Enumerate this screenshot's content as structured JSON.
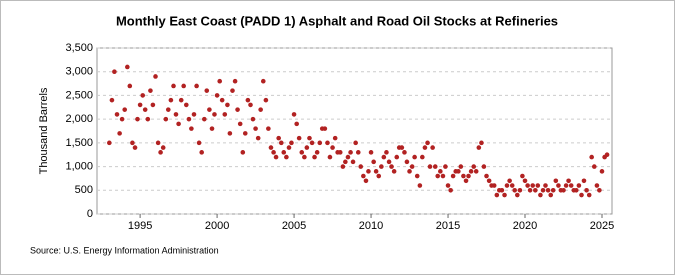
{
  "chart_data": {
    "type": "scatter",
    "title": "Monthly East Coast (PADD 1) Asphalt and Road Oil Stocks at Refineries",
    "y_label": "Thousand Barrels",
    "source": "Source: U.S. Energy Information Administration",
    "color": "#b22222",
    "grid": true,
    "xlim": [
      1992.2,
      2025.65
    ],
    "xticks": [
      1995,
      2000,
      2005,
      2010,
      2015,
      2020,
      2025
    ],
    "ylim": [
      0,
      3500
    ],
    "yticks": [
      0,
      500,
      {
        "value": 1000,
        "label": "1,000"
      },
      {
        "value": 1500,
        "label": "1,500"
      },
      {
        "value": 2000,
        "label": "2,000"
      },
      {
        "value": 2500,
        "label": "2,500"
      },
      {
        "value": 3000,
        "label": "3,000"
      },
      {
        "value": 3500,
        "label": "3,500"
      }
    ],
    "x": [
      1993.0,
      1993.17,
      1993.33,
      1993.5,
      1993.67,
      1993.83,
      1994.0,
      1994.17,
      1994.33,
      1994.5,
      1994.67,
      1994.83,
      1995.0,
      1995.17,
      1995.33,
      1995.5,
      1995.67,
      1995.83,
      1996.0,
      1996.17,
      1996.33,
      1996.5,
      1996.67,
      1996.83,
      1997.0,
      1997.17,
      1997.33,
      1997.5,
      1997.67,
      1997.83,
      1998.0,
      1998.17,
      1998.33,
      1998.5,
      1998.67,
      1998.83,
      1999.0,
      1999.17,
      1999.33,
      1999.5,
      1999.67,
      1999.83,
      2000.0,
      2000.17,
      2000.33,
      2000.5,
      2000.67,
      2000.83,
      2001.0,
      2001.17,
      2001.33,
      2001.5,
      2001.67,
      2001.83,
      2002.0,
      2002.17,
      2002.33,
      2002.5,
      2002.67,
      2002.83,
      2003.0,
      2003.17,
      2003.33,
      2003.5,
      2003.67,
      2003.83,
      2004.0,
      2004.17,
      2004.33,
      2004.5,
      2004.67,
      2004.83,
      2005.0,
      2005.17,
      2005.33,
      2005.5,
      2005.67,
      2005.83,
      2006.0,
      2006.17,
      2006.33,
      2006.5,
      2006.67,
      2006.83,
      2007.0,
      2007.17,
      2007.33,
      2007.5,
      2007.67,
      2007.83,
      2008.0,
      2008.17,
      2008.33,
      2008.5,
      2008.67,
      2008.83,
      2009.0,
      2009.17,
      2009.33,
      2009.5,
      2009.67,
      2009.83,
      2010.0,
      2010.17,
      2010.33,
      2010.5,
      2010.67,
      2010.83,
      2011.0,
      2011.17,
      2011.33,
      2011.5,
      2011.67,
      2011.83,
      2012.0,
      2012.17,
      2012.33,
      2012.5,
      2012.67,
      2012.83,
      2013.0,
      2013.17,
      2013.33,
      2013.5,
      2013.67,
      2013.83,
      2014.0,
      2014.17,
      2014.33,
      2014.5,
      2014.67,
      2014.83,
      2015.0,
      2015.17,
      2015.33,
      2015.5,
      2015.67,
      2015.83,
      2016.0,
      2016.17,
      2016.33,
      2016.5,
      2016.67,
      2016.83,
      2017.0,
      2017.17,
      2017.33,
      2017.5,
      2017.67,
      2017.83,
      2018.0,
      2018.17,
      2018.33,
      2018.5,
      2018.67,
      2018.83,
      2019.0,
      2019.17,
      2019.33,
      2019.5,
      2019.67,
      2019.83,
      2020.0,
      2020.17,
      2020.33,
      2020.5,
      2020.67,
      2020.83,
      2021.0,
      2021.17,
      2021.33,
      2021.5,
      2021.67,
      2021.83,
      2022.0,
      2022.17,
      2022.33,
      2022.5,
      2022.67,
      2022.83,
      2023.0,
      2023.17,
      2023.33,
      2023.5,
      2023.67,
      2023.83,
      2024.0,
      2024.17,
      2024.33,
      2024.5,
      2024.67,
      2024.83,
      2025.0,
      2025.17,
      2025.33
    ],
    "values": [
      1500,
      2400,
      3000,
      2100,
      1700,
      2000,
      2200,
      3100,
      2700,
      1500,
      1400,
      2000,
      2300,
      2500,
      2200,
      2000,
      2600,
      2300,
      2900,
      1500,
      1300,
      1400,
      2000,
      2200,
      2400,
      2700,
      2100,
      1900,
      2400,
      2700,
      2300,
      2000,
      1800,
      2100,
      2700,
      1500,
      1300,
      2000,
      2600,
      2200,
      1800,
      2100,
      2500,
      2800,
      2400,
      2100,
      2300,
      1700,
      2600,
      2800,
      2200,
      1900,
      1300,
      1700,
      2400,
      2300,
      2000,
      1800,
      1600,
      2200,
      2800,
      2400,
      1800,
      1400,
      1300,
      1200,
      1600,
      1500,
      1300,
      1200,
      1400,
      1500,
      2100,
      1900,
      1600,
      1300,
      1200,
      1400,
      1600,
      1500,
      1200,
      1300,
      1500,
      1800,
      1800,
      1500,
      1200,
      1400,
      1600,
      1300,
      1300,
      1000,
      1100,
      1200,
      1300,
      1100,
      1500,
      1300,
      1000,
      800,
      700,
      900,
      1300,
      1100,
      900,
      800,
      1000,
      1200,
      1300,
      1100,
      1000,
      900,
      1200,
      1400,
      1400,
      1300,
      1100,
      900,
      1000,
      1200,
      800,
      600,
      1200,
      1400,
      1500,
      1000,
      1400,
      1000,
      800,
      900,
      800,
      1000,
      600,
      500,
      800,
      900,
      900,
      1000,
      800,
      700,
      800,
      900,
      1000,
      900,
      1400,
      1500,
      1000,
      800,
      700,
      600,
      600,
      400,
      500,
      500,
      400,
      600,
      700,
      600,
      500,
      400,
      500,
      800,
      700,
      600,
      500,
      600,
      500,
      600,
      400,
      500,
      600,
      500,
      400,
      500,
      700,
      600,
      500,
      500,
      600,
      700,
      600,
      500,
      500,
      600,
      400,
      700,
      500,
      400,
      1200,
      1000,
      600,
      500,
      900,
      1200,
      1250
    ]
  }
}
